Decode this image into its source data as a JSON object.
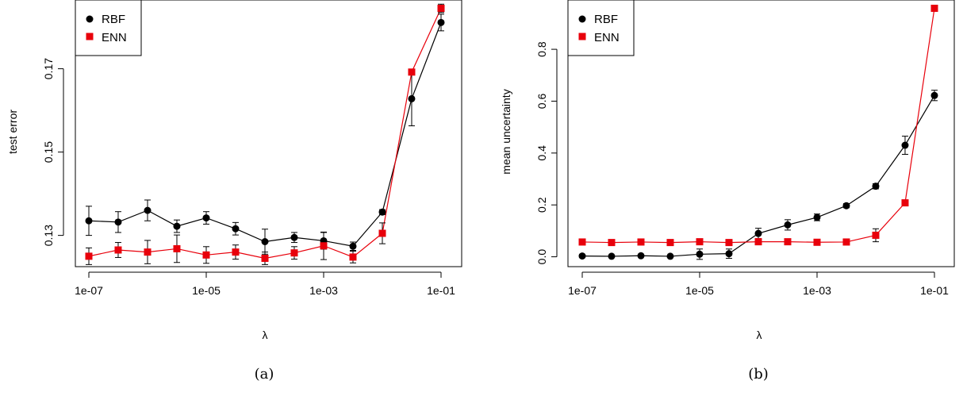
{
  "chart_data": [
    {
      "type": "line",
      "panel_label": "(a)",
      "xlabel": "λ",
      "ylabel": "test error",
      "x_scale": "log",
      "x": [
        1e-07,
        3.16e-07,
        1e-06,
        3.16e-06,
        1e-05,
        3.16e-05,
        0.0001,
        0.000316,
        0.001,
        0.00316,
        0.01,
        0.0316,
        0.1
      ],
      "xticks": [
        1e-07,
        1e-05,
        0.001,
        0.1
      ],
      "xtick_labels": [
        "1e-07",
        "1e-05",
        "1e-03",
        "1e-01"
      ],
      "yticks": [
        0.13,
        0.15,
        0.17
      ],
      "ytick_labels": [
        "0.13",
        "0.15",
        "0.17"
      ],
      "ylim": [
        0.1225,
        0.1865
      ],
      "series": [
        {
          "name": "RBF",
          "color": "#000000",
          "marker": "circle",
          "values": [
            0.1335,
            0.1332,
            0.136,
            0.1322,
            0.1342,
            0.1316,
            0.1285,
            0.1295,
            0.1287,
            0.1274,
            0.1356,
            0.1628,
            0.1811
          ],
          "errors": [
            0.0035,
            0.0025,
            0.0025,
            0.0015,
            0.0015,
            0.0015,
            0.003,
            0.0012,
            0.002,
            0.001,
            0.0006,
            0.0065,
            0.002
          ]
        },
        {
          "name": "ENN",
          "color": "#e8000b",
          "marker": "square",
          "values": [
            0.125,
            0.1265,
            0.126,
            0.1268,
            0.1253,
            0.126,
            0.1245,
            0.1258,
            0.1275,
            0.1248,
            0.1305,
            0.1692,
            0.1845
          ],
          "errors": [
            0.002,
            0.0018,
            0.0028,
            0.0033,
            0.002,
            0.0017,
            0.0015,
            0.0015,
            0.0033,
            0.0014,
            0.0025,
            0.0005,
            0.001
          ]
        }
      ],
      "legend": "top-left"
    },
    {
      "type": "line",
      "panel_label": "(b)",
      "xlabel": "λ",
      "ylabel": "mean uncertainty",
      "x_scale": "log",
      "x": [
        1e-07,
        3.16e-07,
        1e-06,
        3.16e-06,
        1e-05,
        3.16e-05,
        0.0001,
        0.000316,
        0.001,
        0.00316,
        0.01,
        0.0316,
        0.1
      ],
      "xticks": [
        1e-07,
        1e-05,
        0.001,
        0.1
      ],
      "xtick_labels": [
        "1e-07",
        "1e-05",
        "1e-03",
        "1e-01"
      ],
      "yticks": [
        0.0,
        0.2,
        0.4,
        0.6,
        0.8
      ],
      "ytick_labels": [
        "0.0",
        "0.2",
        "0.4",
        "0.6",
        "0.8"
      ],
      "ylim": [
        -0.038,
        0.99
      ],
      "series": [
        {
          "name": "RBF",
          "color": "#000000",
          "marker": "circle",
          "values": [
            0.003,
            0.002,
            0.004,
            0.002,
            0.01,
            0.012,
            0.09,
            0.123,
            0.152,
            0.197,
            0.272,
            0.43,
            0.622
          ],
          "errors": [
            0.006,
            0.004,
            0.004,
            0.004,
            0.02,
            0.018,
            0.02,
            0.02,
            0.013,
            0.008,
            0.01,
            0.035,
            0.02
          ]
        },
        {
          "name": "ENN",
          "color": "#e8000b",
          "marker": "square",
          "values": [
            0.057,
            0.055,
            0.057,
            0.055,
            0.058,
            0.055,
            0.058,
            0.058,
            0.056,
            0.057,
            0.083,
            0.208,
            0.958
          ],
          "errors": [
            0.008,
            0.008,
            0.006,
            0.006,
            0.008,
            0.008,
            0.008,
            0.008,
            0.008,
            0.008,
            0.025,
            0.008,
            0.005
          ]
        }
      ],
      "legend": "top-left"
    }
  ]
}
